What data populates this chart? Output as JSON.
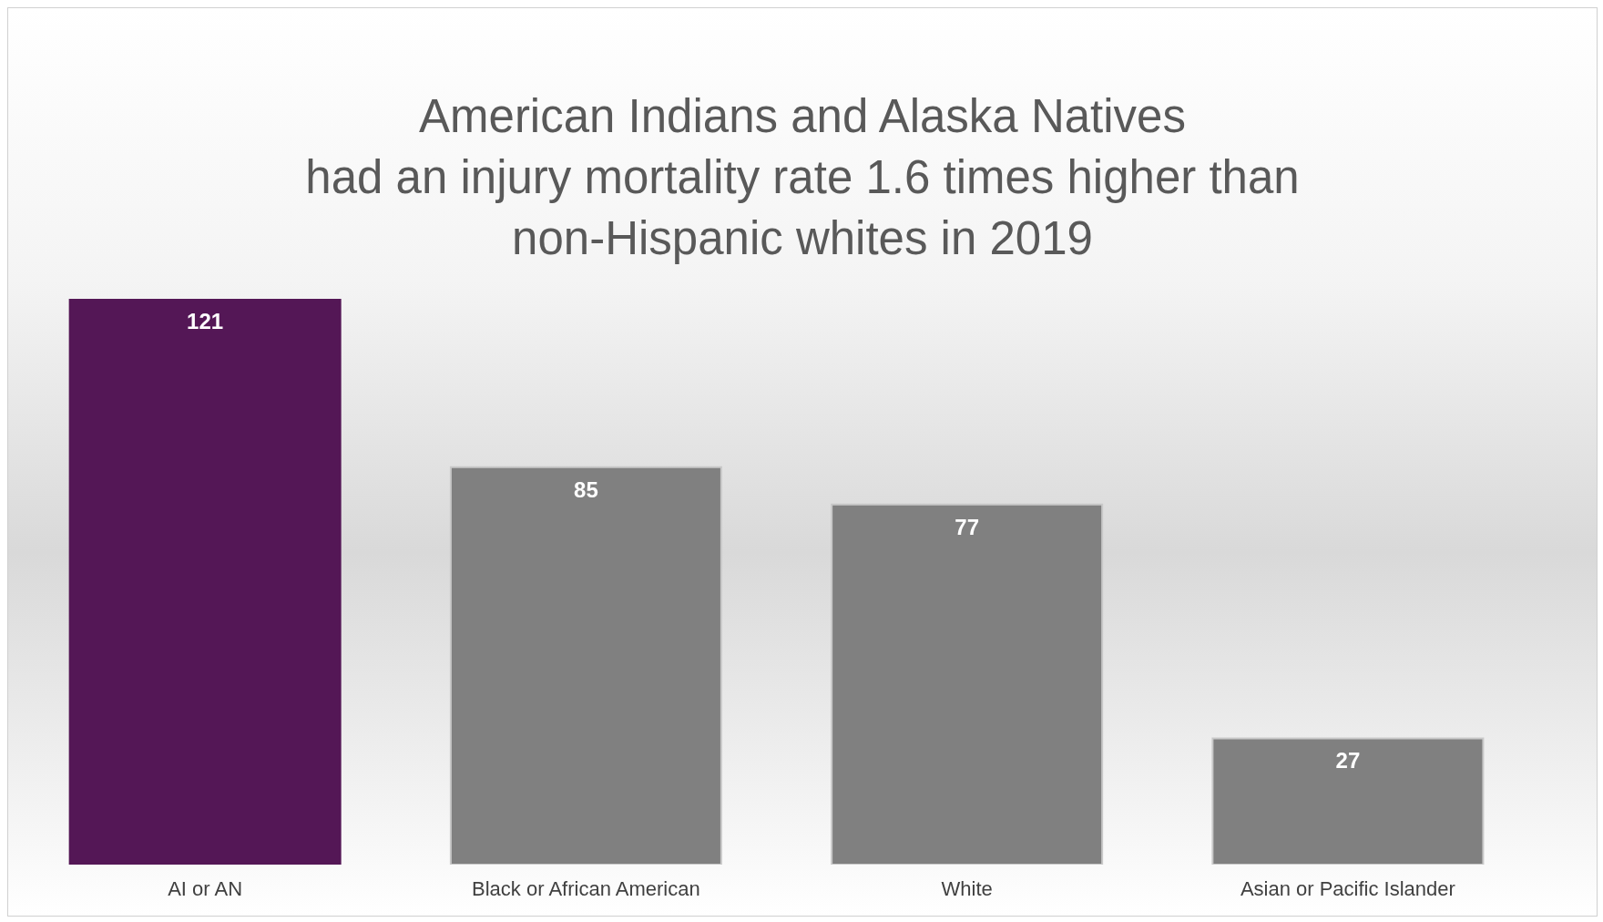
{
  "chart_data": {
    "type": "bar",
    "title": "American Indians and Alaska Natives\nhad an injury mortality rate 1.6 times higher than\nnon-Hispanic whites in 2019",
    "categories": [
      "AI or AN",
      "Black or African American",
      "White",
      "Asian or Pacific Islander"
    ],
    "values": [
      121,
      85,
      77,
      27
    ],
    "colors": [
      "#541756",
      "#808080",
      "#808080",
      "#808080"
    ],
    "data_labels": true
  }
}
